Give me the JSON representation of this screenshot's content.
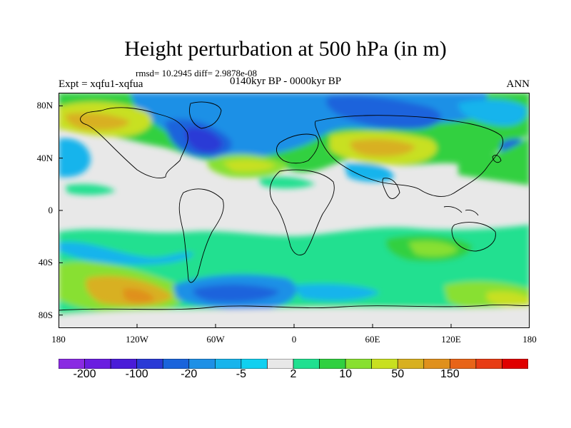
{
  "title": "Height perturbation at 500 hPa (in m)",
  "stats": "rmsd= 10.2945 diff= 2.9878e-08",
  "experiment": "Expt = xqfu1-xqfua",
  "period": "0140kyr BP - 0000kyr BP",
  "season": "ANN",
  "map": {
    "projection": "cylindrical-equidistant",
    "lon_range": [
      -180,
      180
    ],
    "lat_range": [
      -90,
      90
    ],
    "background": "#e8e8e8",
    "coastline_color": "#000000",
    "lat_labels": [
      {
        "text": "80N",
        "lat": 80
      },
      {
        "text": "40N",
        "lat": 40
      },
      {
        "text": "0",
        "lat": 0
      },
      {
        "text": "40S",
        "lat": -40
      },
      {
        "text": "80S",
        "lat": -80
      }
    ],
    "lon_labels": [
      {
        "text": "180",
        "lon": -180
      },
      {
        "text": "120W",
        "lon": -120
      },
      {
        "text": "60W",
        "lon": -60
      },
      {
        "text": "0",
        "lon": 0
      },
      {
        "text": "60E",
        "lon": 60
      },
      {
        "text": "120E",
        "lon": 120
      },
      {
        "text": "180",
        "lon": 180
      }
    ]
  },
  "colorbar": {
    "colors": [
      "#8a2be2",
      "#6a1ee0",
      "#4a1cd8",
      "#2a3ad6",
      "#1a64dc",
      "#1e90e6",
      "#18b4ec",
      "#10d0f0",
      "#e8e8e8",
      "#20e090",
      "#30d040",
      "#88e030",
      "#c8e020",
      "#d8b020",
      "#e0901c",
      "#e86418",
      "#e83c14",
      "#e00000"
    ],
    "labels": [
      {
        "text": "-200",
        "index": 1
      },
      {
        "text": "-100",
        "index": 3
      },
      {
        "text": "-20",
        "index": 5
      },
      {
        "text": "-5",
        "index": 7
      },
      {
        "text": "2",
        "index": 9
      },
      {
        "text": "10",
        "index": 11
      },
      {
        "text": "50",
        "index": 13
      },
      {
        "text": "150",
        "index": 15
      }
    ]
  }
}
